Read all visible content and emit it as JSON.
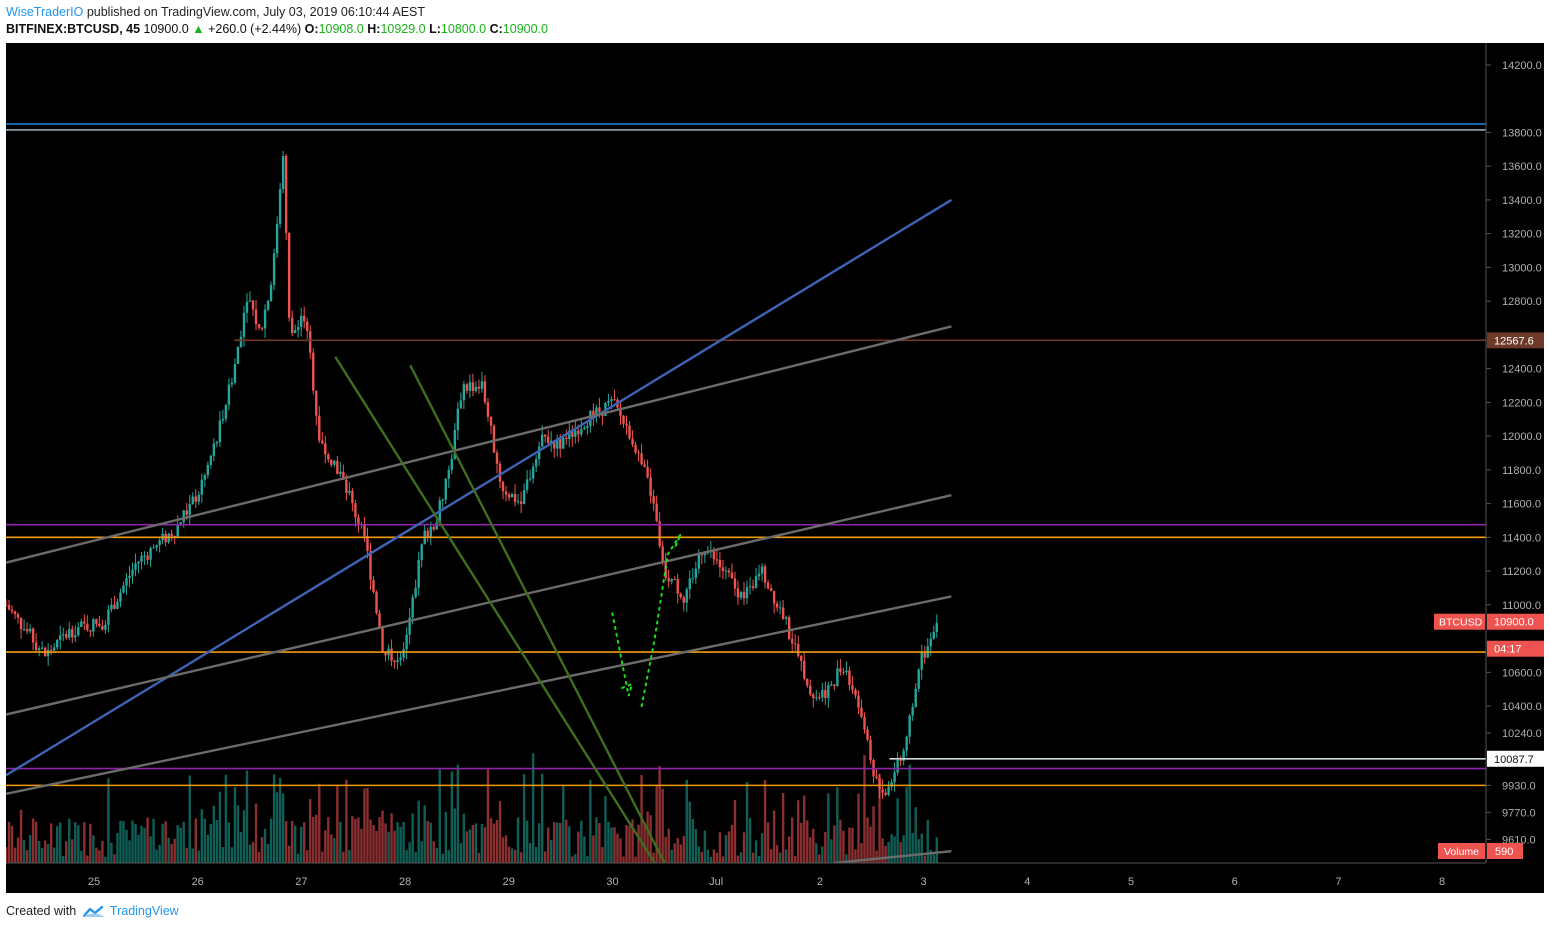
{
  "header": {
    "author": "WiseTraderIO",
    "published_text": "published on TradingView.com, July 03, 2019 06:10:44 AEST",
    "symbol": "BITFINEX:BTCUSD, 45",
    "last_price": "10900.0",
    "change": "+260.0 (+2.44%)",
    "o_label": "O:",
    "o_value": "10908.0",
    "h_label": "H:",
    "h_value": "10929.0",
    "l_label": "L:",
    "l_value": "10800.0",
    "c_label": "C:",
    "c_value": "10900.0"
  },
  "footer": {
    "created_with": "Created with",
    "brand": "TradingView"
  },
  "colors": {
    "background": "#000000",
    "up": "#26a69a",
    "down": "#ef5350",
    "vol_up": "#0f5f57",
    "vol_down": "#8b2f30",
    "blue_line": "#3f63b5",
    "grey_line": "#6b6b6b",
    "green_channel": "#3e6e1e",
    "purple": "#8e24aa",
    "orange": "#f39c12",
    "brown": "#6d3a2a",
    "prediction": "#19e019"
  },
  "chart_data": {
    "type": "candlestick",
    "symbol": "BITFINEX:BTCUSD",
    "interval": "45",
    "x_labels": [
      "25",
      "26",
      "27",
      "28",
      "29",
      "30",
      "Jul",
      "2",
      "3",
      "4",
      "5",
      "6",
      "7",
      "8"
    ],
    "y_ticks": [
      9610,
      9770,
      9930,
      10240,
      10400,
      10600,
      11000,
      11200,
      11400,
      11600,
      11800,
      12000,
      12200,
      12400,
      12800,
      13000,
      13200,
      13400,
      13600,
      13800,
      14200
    ],
    "ylim": [
      9470,
      14330
    ],
    "price_points": [
      [
        0,
        11000
      ],
      [
        0.3,
        10850
      ],
      [
        0.6,
        10700
      ],
      [
        1.0,
        10850
      ],
      [
        1.5,
        10900
      ],
      [
        2.0,
        11250
      ],
      [
        2.3,
        11350
      ],
      [
        2.6,
        11450
      ],
      [
        3.0,
        11700
      ],
      [
        3.2,
        11950
      ],
      [
        3.5,
        12400
      ],
      [
        3.7,
        12850
      ],
      [
        3.9,
        12600
      ],
      [
        4.1,
        13000
      ],
      [
        4.25,
        13700
      ],
      [
        4.35,
        12600
      ],
      [
        4.6,
        12700
      ],
      [
        4.8,
        12000
      ],
      [
        5.1,
        11800
      ],
      [
        5.5,
        11400
      ],
      [
        5.8,
        10700
      ],
      [
        6.1,
        10700
      ],
      [
        6.4,
        11400
      ],
      [
        6.6,
        11500
      ],
      [
        6.8,
        11800
      ],
      [
        7.0,
        12300
      ],
      [
        7.3,
        12300
      ],
      [
        7.6,
        11700
      ],
      [
        7.9,
        11600
      ],
      [
        8.2,
        12000
      ],
      [
        8.5,
        11950
      ],
      [
        8.9,
        12100
      ],
      [
        9.3,
        12200
      ],
      [
        9.6,
        12000
      ],
      [
        9.9,
        11650
      ],
      [
        10.1,
        11200
      ],
      [
        10.4,
        11050
      ],
      [
        10.7,
        11350
      ],
      [
        11.0,
        11200
      ],
      [
        11.3,
        11050
      ],
      [
        11.6,
        11200
      ],
      [
        11.9,
        10950
      ],
      [
        12.2,
        10650
      ],
      [
        12.4,
        10450
      ],
      [
        12.6,
        10500
      ],
      [
        12.85,
        10650
      ],
      [
        13.1,
        10400
      ],
      [
        13.3,
        10000
      ],
      [
        13.5,
        9880
      ],
      [
        13.7,
        10100
      ],
      [
        13.8,
        10150
      ],
      [
        14.0,
        10650
      ],
      [
        14.2,
        10800
      ],
      [
        14.3,
        10900
      ]
    ],
    "horizontal_levels": [
      {
        "price": 13850,
        "color": "#1e88e5"
      },
      {
        "price": 13815,
        "color": "#90a4ae"
      },
      {
        "price": 12567.6,
        "color": "#6d3a2a",
        "label": "12567.6",
        "x_start": 3.5
      },
      {
        "price": 11475,
        "color": "#8e24aa"
      },
      {
        "price": 11400,
        "color": "#f39c12"
      },
      {
        "price": 10720,
        "color": "#f39c12"
      },
      {
        "price": 10087.7,
        "color": "#cfd8dc",
        "label": "10087.7",
        "x_start": 13.55
      },
      {
        "price": 10030,
        "color": "#8e24aa"
      },
      {
        "price": 9930,
        "color": "#f39c12"
      }
    ],
    "trend_lines": [
      {
        "color": "#3f63b5",
        "from": [
          0,
          9990
        ],
        "to": [
          14.5,
          13400
        ]
      },
      {
        "color": "#6b6b6b",
        "from": [
          0,
          11250
        ],
        "to": [
          14.5,
          12650
        ]
      },
      {
        "color": "#6b6b6b",
        "from": [
          0,
          10350
        ],
        "to": [
          14.5,
          11650
        ]
      },
      {
        "color": "#6b6b6b",
        "from": [
          0,
          9880
        ],
        "to": [
          14.5,
          11050
        ]
      },
      {
        "color": "#6b6b6b",
        "from": [
          12.7,
          9470
        ],
        "to": [
          14.5,
          9540
        ]
      },
      {
        "color": "#3e6e1e",
        "from": [
          5.05,
          12470
        ],
        "to": [
          9.95,
          9470
        ]
      },
      {
        "color": "#3e6e1e",
        "from": [
          6.2,
          12420
        ],
        "to": [
          10.1,
          9470
        ]
      }
    ],
    "prediction_path": [
      [
        9.3,
        10950
      ],
      [
        9.55,
        10460
      ],
      [
        9.6,
        10530
      ],
      [
        9.4,
        10500
      ]
    ],
    "prediction_path2": [
      [
        9.75,
        10400
      ],
      [
        9.95,
        10800
      ],
      [
        10.15,
        11300
      ],
      [
        10.35,
        11420
      ],
      [
        10.25,
        11330
      ]
    ],
    "price_badges": [
      {
        "name": "BTCUSD",
        "value": "10900.0",
        "price": 10900,
        "color": "#ef5350"
      },
      {
        "name": "",
        "value": "04:17",
        "price": 10740,
        "color": "#ef5350"
      }
    ],
    "volume_badge": {
      "name": "Volume",
      "value": "590",
      "color": "#ef5350"
    }
  }
}
